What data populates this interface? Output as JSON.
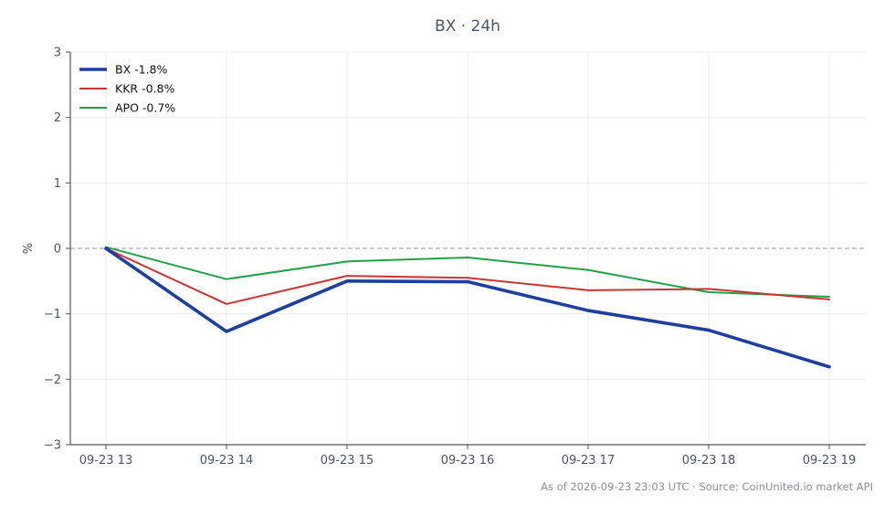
{
  "title": "BX · 24h",
  "footer": "As of 2026-09-23 23:03 UTC · Source: CoinUnited.io market API",
  "chart_data": {
    "type": "line",
    "title": "BX · 24h",
    "xlabel": "",
    "ylabel": "%",
    "ylim": [
      -3,
      3
    ],
    "yticks": [
      -3,
      -2,
      -1,
      0,
      1,
      2,
      3
    ],
    "ytick_labels": [
      "−3",
      "−2",
      "−1",
      "0",
      "1",
      "2",
      "3"
    ],
    "categories": [
      "09-23 13",
      "09-23 14",
      "09-23 15",
      "09-23 16",
      "09-23 17",
      "09-23 18",
      "09-23 19"
    ],
    "grid": true,
    "legend_position": "top-left",
    "reference_line": 0,
    "series": [
      {
        "name": "BX -1.8%",
        "color": "#1f3f9e",
        "values": [
          0.0,
          -1.27,
          -0.5,
          -0.51,
          -0.95,
          -1.25,
          -1.81
        ]
      },
      {
        "name": "KKR -0.8%",
        "color": "#cc3333",
        "values": [
          0.0,
          -0.85,
          -0.42,
          -0.45,
          -0.64,
          -0.62,
          -0.78
        ]
      },
      {
        "name": "APO -0.7%",
        "color": "#22a04a",
        "values": [
          0.02,
          -0.47,
          -0.2,
          -0.14,
          -0.33,
          -0.67,
          -0.74
        ]
      }
    ]
  }
}
